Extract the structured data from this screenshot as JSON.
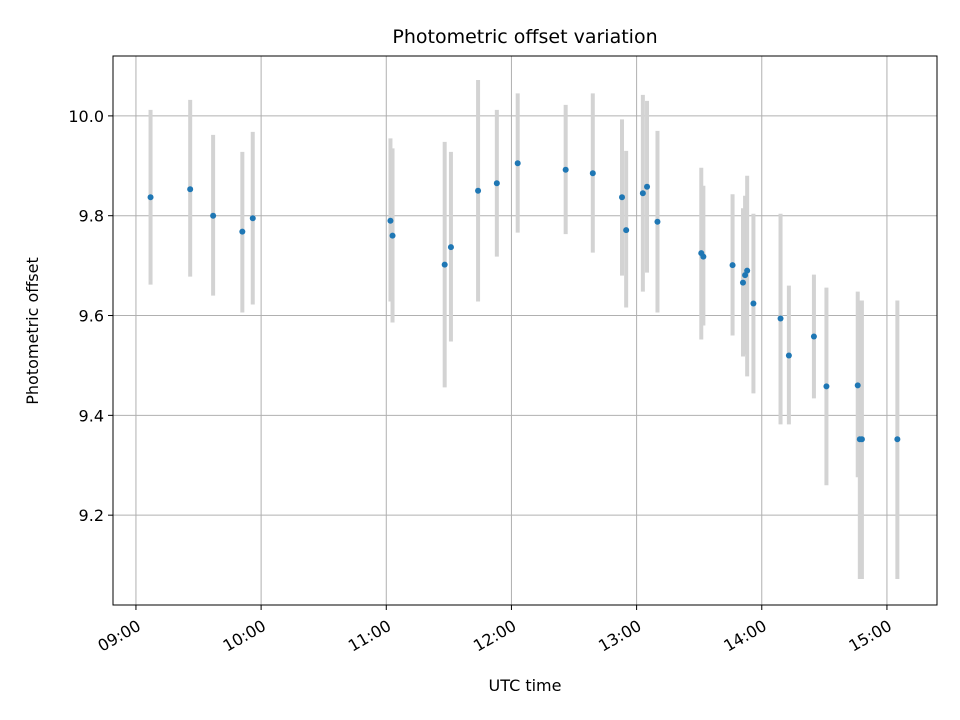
{
  "chart_data": {
    "type": "scatter",
    "title": "Photometric offset variation",
    "xlabel": "UTC time",
    "ylabel": "Photometric offset",
    "x_ticks": [
      "09:00",
      "10:00",
      "11:00",
      "12:00",
      "13:00",
      "14:00",
      "15:00"
    ],
    "y_ticks": [
      "9.2",
      "9.4",
      "9.6",
      "9.8",
      "10.0"
    ],
    "xlim": [
      "08:49",
      "15:24"
    ],
    "ylim": [
      9.02,
      10.12
    ],
    "grid": true,
    "colors": {
      "points": "#1f77b4",
      "error_bars": "#d3d3d3"
    },
    "points": [
      {
        "x": "09:07",
        "y": 9.837,
        "err_low": 9.662,
        "err_high": 10.012
      },
      {
        "x": "09:26",
        "y": 9.853,
        "err_low": 9.678,
        "err_high": 10.032
      },
      {
        "x": "09:37",
        "y": 9.8,
        "err_low": 9.64,
        "err_high": 9.962
      },
      {
        "x": "09:51",
        "y": 9.768,
        "err_low": 9.606,
        "err_high": 9.928
      },
      {
        "x": "09:56",
        "y": 9.795,
        "err_low": 9.622,
        "err_high": 9.968
      },
      {
        "x": "11:02",
        "y": 9.79,
        "err_low": 9.628,
        "err_high": 9.955
      },
      {
        "x": "11:03",
        "y": 9.76,
        "err_low": 9.586,
        "err_high": 9.935
      },
      {
        "x": "11:28",
        "y": 9.702,
        "err_low": 9.456,
        "err_high": 9.948
      },
      {
        "x": "11:31",
        "y": 9.737,
        "err_low": 9.548,
        "err_high": 9.928
      },
      {
        "x": "11:44",
        "y": 9.85,
        "err_low": 9.628,
        "err_high": 10.072
      },
      {
        "x": "11:53",
        "y": 9.865,
        "err_low": 9.718,
        "err_high": 10.012
      },
      {
        "x": "12:03",
        "y": 9.905,
        "err_low": 9.766,
        "err_high": 10.045
      },
      {
        "x": "12:26",
        "y": 9.892,
        "err_low": 9.763,
        "err_high": 10.022
      },
      {
        "x": "12:39",
        "y": 9.885,
        "err_low": 9.726,
        "err_high": 10.045
      },
      {
        "x": "12:53",
        "y": 9.837,
        "err_low": 9.68,
        "err_high": 9.993
      },
      {
        "x": "12:55",
        "y": 9.771,
        "err_low": 9.616,
        "err_high": 9.93
      },
      {
        "x": "13:03",
        "y": 9.845,
        "err_low": 9.648,
        "err_high": 10.042
      },
      {
        "x": "13:05",
        "y": 9.858,
        "err_low": 9.686,
        "err_high": 10.03
      },
      {
        "x": "13:10",
        "y": 9.788,
        "err_low": 9.606,
        "err_high": 9.97
      },
      {
        "x": "13:31",
        "y": 9.725,
        "err_low": 9.552,
        "err_high": 9.896
      },
      {
        "x": "13:32",
        "y": 9.718,
        "err_low": 9.58,
        "err_high": 9.86
      },
      {
        "x": "13:46",
        "y": 9.701,
        "err_low": 9.56,
        "err_high": 9.843
      },
      {
        "x": "13:51",
        "y": 9.666,
        "err_low": 9.518,
        "err_high": 9.815
      },
      {
        "x": "13:52",
        "y": 9.681,
        "err_low": 9.522,
        "err_high": 9.84
      },
      {
        "x": "13:53",
        "y": 9.69,
        "err_low": 9.478,
        "err_high": 9.88
      },
      {
        "x": "13:56",
        "y": 9.624,
        "err_low": 9.444,
        "err_high": 9.804
      },
      {
        "x": "14:09",
        "y": 9.594,
        "err_low": 9.382,
        "err_high": 9.804
      },
      {
        "x": "14:13",
        "y": 9.52,
        "err_low": 9.382,
        "err_high": 9.66
      },
      {
        "x": "14:25",
        "y": 9.558,
        "err_low": 9.434,
        "err_high": 9.682
      },
      {
        "x": "14:31",
        "y": 9.458,
        "err_low": 9.26,
        "err_high": 9.656
      },
      {
        "x": "14:46",
        "y": 9.46,
        "err_low": 9.276,
        "err_high": 9.648
      },
      {
        "x": "14:47",
        "y": 9.352,
        "err_low": 9.072,
        "err_high": 9.63
      },
      {
        "x": "14:48",
        "y": 9.352,
        "err_low": 9.072,
        "err_high": 9.63
      },
      {
        "x": "15:05",
        "y": 9.352,
        "err_low": 9.072,
        "err_high": 9.63
      }
    ]
  }
}
